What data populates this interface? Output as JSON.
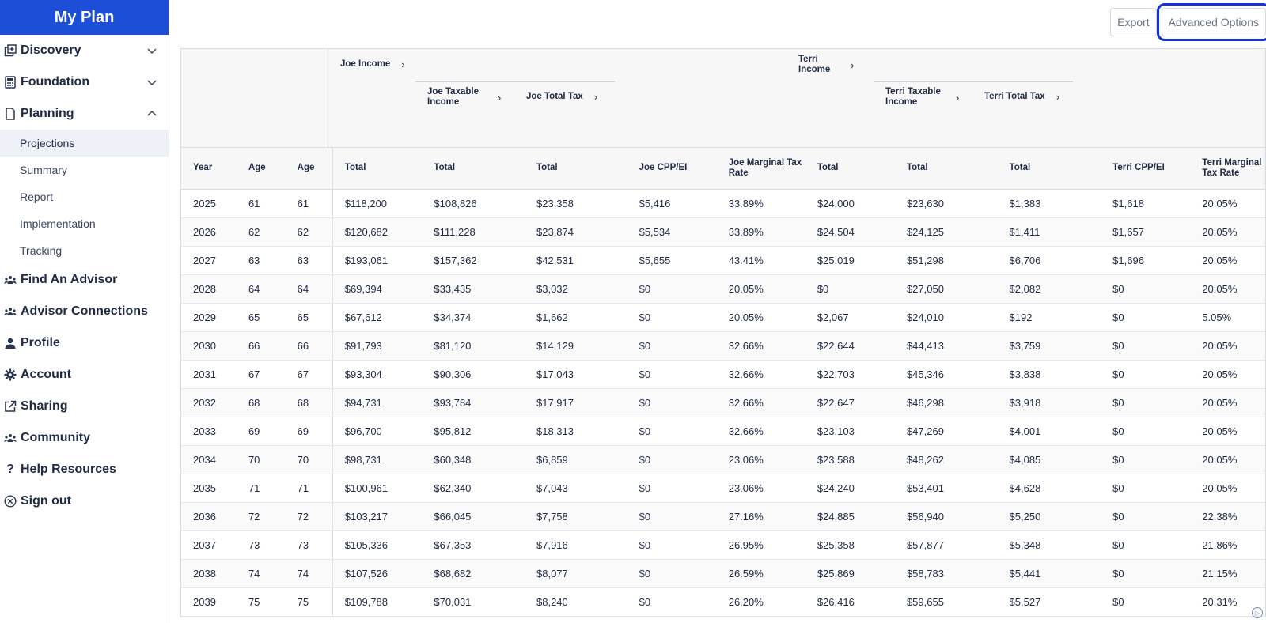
{
  "app": {
    "title": "My Plan"
  },
  "sidebar": {
    "items": [
      {
        "label": "Discovery",
        "icon": "plus-square-icon",
        "expandable": true,
        "expanded": false
      },
      {
        "label": "Foundation",
        "icon": "calculator-icon",
        "expandable": true,
        "expanded": false
      },
      {
        "label": "Planning",
        "icon": "document-icon",
        "expandable": true,
        "expanded": true
      }
    ],
    "planning_sub": [
      {
        "label": "Projections",
        "active": true
      },
      {
        "label": "Summary"
      },
      {
        "label": "Report"
      },
      {
        "label": "Implementation"
      },
      {
        "label": "Tracking"
      }
    ],
    "bottom_items": [
      {
        "label": "Find An Advisor",
        "icon": "people-icon"
      },
      {
        "label": "Advisor Connections",
        "icon": "people-icon"
      },
      {
        "label": "Profile",
        "icon": "user-icon"
      },
      {
        "label": "Account",
        "icon": "gear-icon"
      },
      {
        "label": "Sharing",
        "icon": "share-icon"
      },
      {
        "label": "Community",
        "icon": "people-icon"
      },
      {
        "label": "Help Resources",
        "icon": "question-icon"
      },
      {
        "label": "Sign out",
        "icon": "close-circle-icon"
      }
    ]
  },
  "toolbar": {
    "export_label": "Export",
    "advanced_label": "Advanced Options"
  },
  "table": {
    "groups": {
      "joe_income": "Joe Income",
      "joe_taxable": "Joe Taxable Income",
      "joe_total_tax": "Joe Total Tax",
      "terri_income": "Terri Income",
      "terri_taxable": "Terri Taxable Income",
      "terri_total_tax": "Terri Total Tax"
    },
    "columns": [
      "Year",
      "Age",
      "Age",
      "Total",
      "Total",
      "Total",
      "Joe CPP/EI",
      "Joe Marginal Tax Rate",
      "Total",
      "Total",
      "Total",
      "Terri CPP/EI",
      "Terri Marginal Tax Rate"
    ],
    "rows": [
      [
        "2025",
        "61",
        "61",
        "$118,200",
        "$108,826",
        "$23,358",
        "$5,416",
        "33.89%",
        "$24,000",
        "$23,630",
        "$1,383",
        "$1,618",
        "20.05%"
      ],
      [
        "2026",
        "62",
        "62",
        "$120,682",
        "$111,228",
        "$23,874",
        "$5,534",
        "33.89%",
        "$24,504",
        "$24,125",
        "$1,411",
        "$1,657",
        "20.05%"
      ],
      [
        "2027",
        "63",
        "63",
        "$193,061",
        "$157,362",
        "$42,531",
        "$5,655",
        "43.41%",
        "$25,019",
        "$51,298",
        "$6,706",
        "$1,696",
        "20.05%"
      ],
      [
        "2028",
        "64",
        "64",
        "$69,394",
        "$33,435",
        "$3,032",
        "$0",
        "20.05%",
        "$0",
        "$27,050",
        "$2,082",
        "$0",
        "20.05%"
      ],
      [
        "2029",
        "65",
        "65",
        "$67,612",
        "$34,374",
        "$1,662",
        "$0",
        "20.05%",
        "$2,067",
        "$24,010",
        "$192",
        "$0",
        "5.05%"
      ],
      [
        "2030",
        "66",
        "66",
        "$91,793",
        "$81,120",
        "$14,129",
        "$0",
        "32.66%",
        "$22,644",
        "$44,413",
        "$3,759",
        "$0",
        "20.05%"
      ],
      [
        "2031",
        "67",
        "67",
        "$93,304",
        "$90,306",
        "$17,043",
        "$0",
        "32.66%",
        "$22,703",
        "$45,346",
        "$3,838",
        "$0",
        "20.05%"
      ],
      [
        "2032",
        "68",
        "68",
        "$94,731",
        "$93,784",
        "$17,917",
        "$0",
        "32.66%",
        "$22,647",
        "$46,298",
        "$3,918",
        "$0",
        "20.05%"
      ],
      [
        "2033",
        "69",
        "69",
        "$96,700",
        "$95,812",
        "$18,313",
        "$0",
        "32.66%",
        "$23,103",
        "$47,269",
        "$4,001",
        "$0",
        "20.05%"
      ],
      [
        "2034",
        "70",
        "70",
        "$98,731",
        "$60,348",
        "$6,859",
        "$0",
        "23.06%",
        "$23,588",
        "$48,262",
        "$4,085",
        "$0",
        "20.05%"
      ],
      [
        "2035",
        "71",
        "71",
        "$100,961",
        "$62,340",
        "$7,043",
        "$0",
        "23.06%",
        "$24,240",
        "$53,401",
        "$4,628",
        "$0",
        "20.05%"
      ],
      [
        "2036",
        "72",
        "72",
        "$103,217",
        "$66,045",
        "$7,758",
        "$0",
        "27.16%",
        "$24,885",
        "$56,940",
        "$5,250",
        "$0",
        "22.38%"
      ],
      [
        "2037",
        "73",
        "73",
        "$105,336",
        "$67,353",
        "$7,916",
        "$0",
        "26.95%",
        "$25,358",
        "$57,877",
        "$5,348",
        "$0",
        "21.86%"
      ],
      [
        "2038",
        "74",
        "74",
        "$107,526",
        "$68,682",
        "$8,077",
        "$0",
        "26.59%",
        "$25,869",
        "$58,783",
        "$5,441",
        "$0",
        "21.15%"
      ],
      [
        "2039",
        "75",
        "75",
        "$109,788",
        "$70,031",
        "$8,240",
        "$0",
        "26.20%",
        "$26,416",
        "$59,655",
        "$5,527",
        "$0",
        "20.31%"
      ]
    ]
  },
  "colors": {
    "brand": "#1d4ed8",
    "focus_outline": "#1530e0"
  }
}
